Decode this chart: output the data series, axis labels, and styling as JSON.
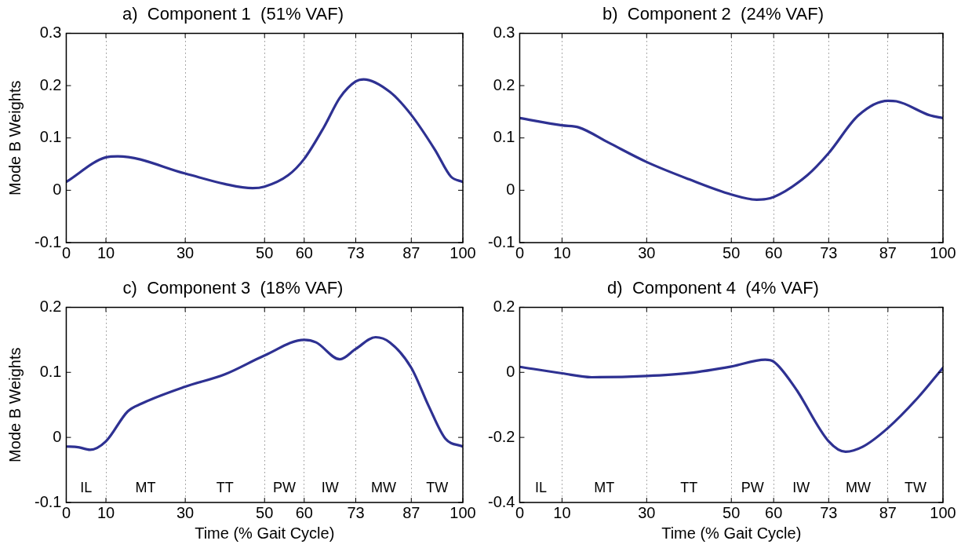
{
  "chart_data": [
    {
      "type": "line",
      "title": "a)  Component 1  (51% VAF)",
      "ylabel": "Mode B Weights",
      "xlim": [
        0,
        100
      ],
      "xticks": [
        0,
        10,
        30,
        50,
        60,
        73,
        87,
        100
      ],
      "ylim": [
        -0.1,
        0.3
      ],
      "yticks": [
        -0.1,
        0,
        0.1,
        0.2,
        0.3
      ],
      "grid": "x",
      "legend": false,
      "marker": "none",
      "line_style": "solid",
      "series": [
        {
          "color": "#2e3192",
          "x": [
            0,
            10,
            13,
            30,
            40,
            47,
            50,
            56,
            60,
            65,
            69,
            73,
            75,
            81.6,
            87,
            93,
            97,
            100
          ],
          "values": [
            0.016,
            0.063,
            0.065,
            0.032,
            0.012,
            0.004,
            0.007,
            0.029,
            0.06,
            0.121,
            0.177,
            0.208,
            0.212,
            0.188,
            0.144,
            0.077,
            0.026,
            0.016
          ]
        }
      ]
    },
    {
      "type": "line",
      "title": "b)  Component 2  (24% VAF)",
      "xlim": [
        0,
        100
      ],
      "xticks": [
        0,
        10,
        30,
        50,
        60,
        73,
        87,
        100
      ],
      "ylim": [
        -0.1,
        0.3
      ],
      "yticks": [
        -0.1,
        0,
        0.1,
        0.2,
        0.3
      ],
      "grid": "x",
      "legend": false,
      "marker": "none",
      "line_style": "solid",
      "series": [
        {
          "color": "#2e3192",
          "x": [
            0,
            10,
            14,
            21,
            30,
            40,
            50,
            56,
            60,
            68,
            73,
            80,
            87,
            89,
            97,
            100
          ],
          "values": [
            0.138,
            0.124,
            0.12,
            0.091,
            0.054,
            0.021,
            -0.008,
            -0.018,
            -0.013,
            0.029,
            0.071,
            0.143,
            0.171,
            0.17,
            0.143,
            0.138
          ]
        }
      ]
    },
    {
      "type": "line",
      "title": "c)  Component 3  (18% VAF)",
      "xlabel": "Time (% Gait Cycle)",
      "ylabel": "Mode B Weights",
      "xlim": [
        0,
        100
      ],
      "xticks": [
        0,
        10,
        30,
        50,
        60,
        73,
        87,
        100
      ],
      "ylim": [
        -0.1,
        0.2
      ],
      "yticks": [
        -0.1,
        0,
        0.1,
        0.2
      ],
      "grid": "x",
      "legend": false,
      "marker": "none",
      "line_style": "solid",
      "annotations": [
        "IL",
        "MT",
        "TT",
        "PW",
        "IW",
        "MW",
        "TW"
      ],
      "series": [
        {
          "color": "#2e3192",
          "x": [
            0,
            3,
            6,
            10,
            15.5,
            19,
            30,
            40,
            50,
            60,
            63,
            69,
            73,
            78,
            81.6,
            87,
            91.4,
            95.6,
            100
          ],
          "values": [
            -0.014,
            -0.015,
            -0.019,
            -0.006,
            0.04,
            0.052,
            0.078,
            0.097,
            0.126,
            0.15,
            0.146,
            0.12,
            0.136,
            0.154,
            0.146,
            0.107,
            0.048,
            -0.002,
            -0.014
          ]
        }
      ]
    },
    {
      "type": "line",
      "title": "d)  Component 4  (4% VAF)",
      "xlabel": "Time (% Gait Cycle)",
      "xlim": [
        0,
        100
      ],
      "xticks": [
        0,
        10,
        30,
        50,
        60,
        73,
        87,
        100
      ],
      "ylim": [
        -0.4,
        0.2
      ],
      "yticks": [
        -0.4,
        -0.2,
        0,
        0.2
      ],
      "grid": "x",
      "legend": false,
      "marker": "none",
      "line_style": "solid",
      "annotations": [
        "IL",
        "MT",
        "TT",
        "PW",
        "IW",
        "MW",
        "TW"
      ],
      "series": [
        {
          "color": "#2e3192",
          "x": [
            0,
            10,
            17,
            30,
            40,
            50,
            58,
            60,
            65,
            73,
            77,
            81,
            87,
            94,
            100
          ],
          "values": [
            0.017,
            -0.003,
            -0.015,
            -0.011,
            -0.002,
            0.018,
            0.039,
            0.033,
            -0.046,
            -0.212,
            -0.244,
            -0.229,
            -0.171,
            -0.079,
            0.014
          ]
        }
      ]
    }
  ]
}
